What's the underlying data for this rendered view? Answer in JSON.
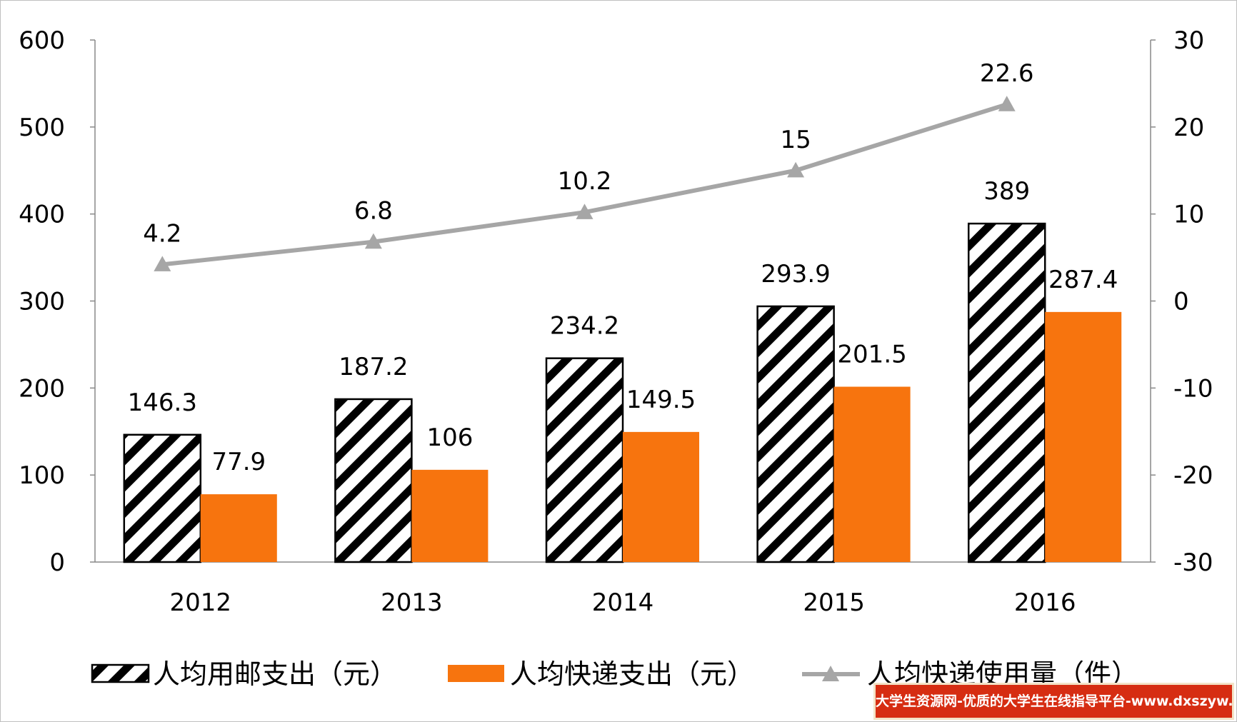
{
  "chart_data": {
    "type": "bar",
    "categories": [
      "2012",
      "2013",
      "2014",
      "2015",
      "2016"
    ],
    "series": [
      {
        "name": "人均用邮支出（元）",
        "kind": "bar",
        "axis": "left",
        "pattern": "diagonal-stripes",
        "color": "#000000",
        "values": [
          146.3,
          187.2,
          234.2,
          293.9,
          389
        ],
        "labels": [
          "146.3",
          "187.2",
          "234.2",
          "293.9",
          "389"
        ]
      },
      {
        "name": "人均快递支出（元）",
        "kind": "bar",
        "axis": "left",
        "color": "#f7740e",
        "values": [
          77.9,
          106,
          149.5,
          201.5,
          287.4
        ],
        "labels": [
          "77.9",
          "106",
          "149.5",
          "201.5",
          "287.4"
        ]
      },
      {
        "name": "人均快递使用量（件）",
        "kind": "line",
        "axis": "right",
        "marker": "triangle",
        "color": "#a6a6a6",
        "values": [
          4.2,
          6.8,
          10.2,
          15,
          22.6
        ],
        "labels": [
          "4.2",
          "6.8",
          "10.2",
          "15",
          "22.6"
        ]
      }
    ],
    "y_left": {
      "min": 0,
      "max": 600,
      "ticks": [
        "0",
        "100",
        "200",
        "300",
        "400",
        "500",
        "600"
      ]
    },
    "y_right": {
      "min": -30,
      "max": 30,
      "ticks": [
        "-30",
        "-20",
        "-10",
        "0",
        "10",
        "20",
        "30"
      ]
    },
    "grid": false,
    "legend_position": "bottom"
  },
  "watermark": "大学生资源网-优质的大学生在线指导平台-www.dxszyw.cn"
}
